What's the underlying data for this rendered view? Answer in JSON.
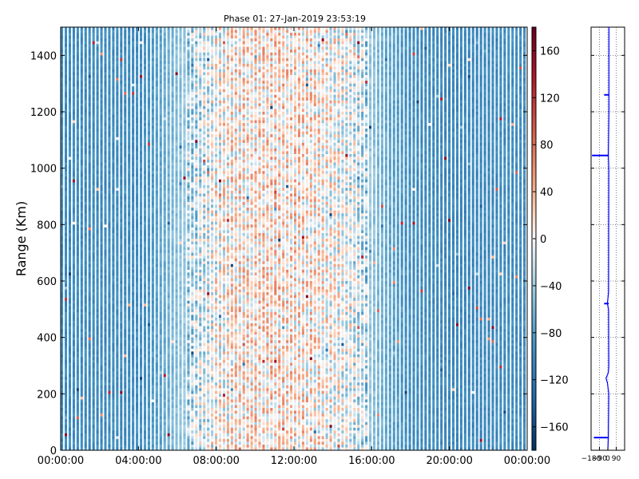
{
  "chart_data": [
    {
      "type": "heatmap",
      "title": "Phase 01: 27-Jan-2019 23:53:19",
      "ylabel": "Range (Km)",
      "xlabel": "",
      "x_tick_labels": [
        "00:00:00",
        "04:00:00",
        "08:00:00",
        "12:00:00",
        "16:00:00",
        "20:00:00",
        "00:00:00"
      ],
      "y_ticks": [
        0,
        200,
        400,
        600,
        800,
        1000,
        1200,
        1400
      ],
      "ylim": [
        0,
        1500
      ],
      "xlim_hours": [
        0,
        24
      ],
      "colorbar": {
        "ticks": [
          160,
          120,
          80,
          40,
          0,
          -40,
          -80,
          -120,
          -160
        ],
        "tick_labels": [
          "160",
          "120",
          "80",
          "40",
          "0",
          "−40",
          "−80",
          "−120",
          "−160"
        ],
        "range": [
          -180,
          180
        ],
        "colormap": "RdBu_r"
      },
      "phase_profile_by_hour": [
        {
          "hour": 0,
          "phase": -95
        },
        {
          "hour": 2,
          "phase": -100
        },
        {
          "hour": 4,
          "phase": -95
        },
        {
          "hour": 5,
          "phase": -80
        },
        {
          "hour": 6,
          "phase": -55
        },
        {
          "hour": 7,
          "phase": -30
        },
        {
          "hour": 8,
          "phase": -5
        },
        {
          "hour": 9,
          "phase": 10
        },
        {
          "hour": 10,
          "phase": 15
        },
        {
          "hour": 11,
          "phase": 20
        },
        {
          "hour": 12,
          "phase": 15
        },
        {
          "hour": 13,
          "phase": 10
        },
        {
          "hour": 14,
          "phase": 0
        },
        {
          "hour": 15,
          "phase": -15
        },
        {
          "hour": 16,
          "phase": -45
        },
        {
          "hour": 17,
          "phase": -75
        },
        {
          "hour": 18,
          "phase": -95
        },
        {
          "hour": 20,
          "phase": -100
        },
        {
          "hour": 22,
          "phase": -100
        },
        {
          "hour": 24,
          "phase": -95
        }
      ],
      "grid": false
    },
    {
      "type": "line",
      "title": "",
      "xlabel": "",
      "ylabel": "",
      "x_tick_labels": [
        "−180",
        "−90",
        "0",
        "90"
      ],
      "xlim": [
        -180,
        180
      ],
      "ylim": [
        0,
        1500
      ],
      "grid": true,
      "series": [
        {
          "values": [
            {
              "range": 0,
              "phase": 0
            },
            {
              "range": 45,
              "phase": 5
            },
            {
              "range": 200,
              "phase": 10
            },
            {
              "range": 240,
              "phase": -5
            },
            {
              "range": 255,
              "phase": -20
            },
            {
              "range": 275,
              "phase": 5
            },
            {
              "range": 300,
              "phase": 10
            },
            {
              "range": 500,
              "phase": 8
            },
            {
              "range": 520,
              "phase": -5
            },
            {
              "range": 560,
              "phase": 8
            },
            {
              "range": 1000,
              "phase": 10
            },
            {
              "range": 1045,
              "phase": 5
            },
            {
              "range": 1200,
              "phase": 12
            },
            {
              "range": 1500,
              "phase": 12
            }
          ]
        }
      ],
      "spikes": [
        {
          "range": 45,
          "phase": -150
        },
        {
          "range": 520,
          "phase": -40
        },
        {
          "range": 1045,
          "phase": -170
        },
        {
          "range": 1260,
          "phase": -40
        }
      ]
    }
  ]
}
